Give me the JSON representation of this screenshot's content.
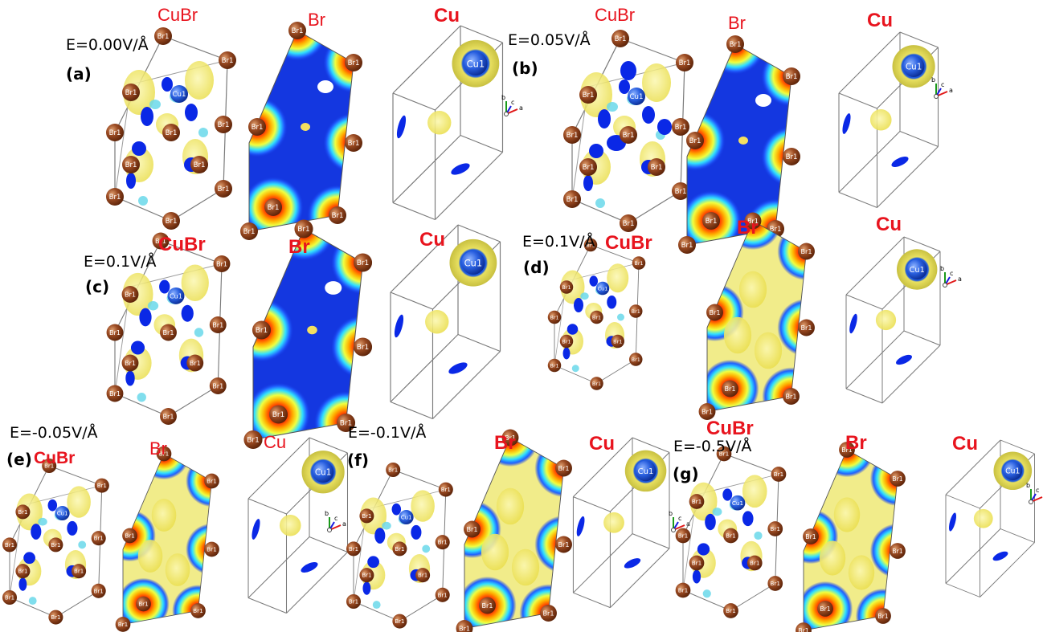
{
  "colors": {
    "br_atom": "#8b3a1a",
    "cu_atom": "#1e5adc",
    "iso_yellow": "#f2ea6a",
    "iso_cyan": "#6ad8ea",
    "iso_blue": "#0a28e6",
    "contour_field": "#1437e0",
    "title_red": "#e8141e"
  },
  "atom_labels": {
    "br": "Br1",
    "cu": "Cu1"
  },
  "axes_labels": {
    "a": "a",
    "b": "b",
    "c": "c"
  },
  "panels": [
    {
      "id": "a",
      "panel_label": "(a)",
      "field": "E=0.00V/Å",
      "titles": [
        "CuBr",
        "Br",
        "Cu"
      ]
    },
    {
      "id": "b",
      "panel_label": "(b)",
      "field": "E=0.05V/Å",
      "titles": [
        "CuBr",
        "Br",
        "Cu"
      ]
    },
    {
      "id": "c",
      "panel_label": "(c)",
      "field": "E=0.1V/Å",
      "titles": [
        "CuBr",
        "Br",
        "Cu"
      ]
    },
    {
      "id": "d",
      "panel_label": "(d)",
      "field": "E=0.1V/Å",
      "titles": [
        "CuBr",
        "Br",
        "Cu"
      ]
    },
    {
      "id": "e",
      "panel_label": "(e)",
      "field": "E=-0.05V/Å",
      "titles": [
        "CuBr",
        "Br",
        "Cu"
      ]
    },
    {
      "id": "f",
      "panel_label": "(f)",
      "field": "E=-0.1V/Å",
      "titles": [
        "Br",
        "Cu"
      ]
    },
    {
      "id": "g",
      "panel_label": "(g)",
      "field": "E=-0.5V/Å",
      "titles": [
        "CuBr",
        "Br",
        "Cu"
      ]
    }
  ]
}
